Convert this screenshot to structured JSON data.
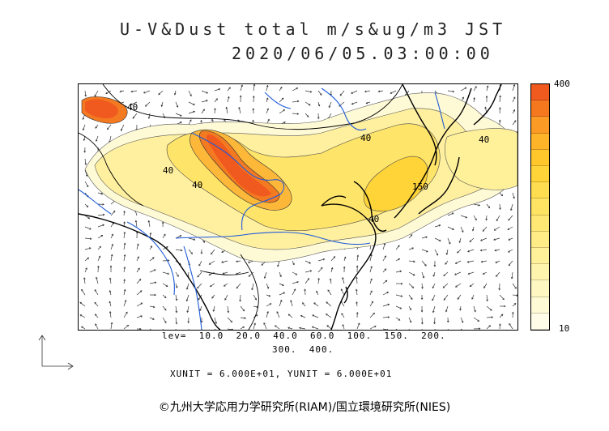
{
  "title_line1": "U-V&Dust total m/s&ug/m3 JST",
  "title_line2": "2020/06/05.03:00:00",
  "colorbar": {
    "max_label": "400",
    "min_label": "10",
    "colors": [
      "#f05a1e",
      "#f6781e",
      "#fb9a24",
      "#fdb428",
      "#ffc72c",
      "#ffd438",
      "#ffdd50",
      "#ffe362",
      "#ffe874",
      "#ffec86",
      "#fff09a",
      "#fff4ae",
      "#fff7c2",
      "#fffad6",
      "#fffde8"
    ]
  },
  "levels_line1": "lev=  10.0  20.0  40.0  60.0  100.  150.  200.",
  "levels_line2": "300.  400.",
  "units_line": "XUNIT = 6.000E+01, YUNIT = 6.000E+01",
  "contour_labels": [
    "40",
    "40",
    "40",
    "40",
    "40",
    "40",
    "150"
  ],
  "credit": "©九州大学応用力学研究所(RIAM)/国立環境研究所(NIES)"
}
